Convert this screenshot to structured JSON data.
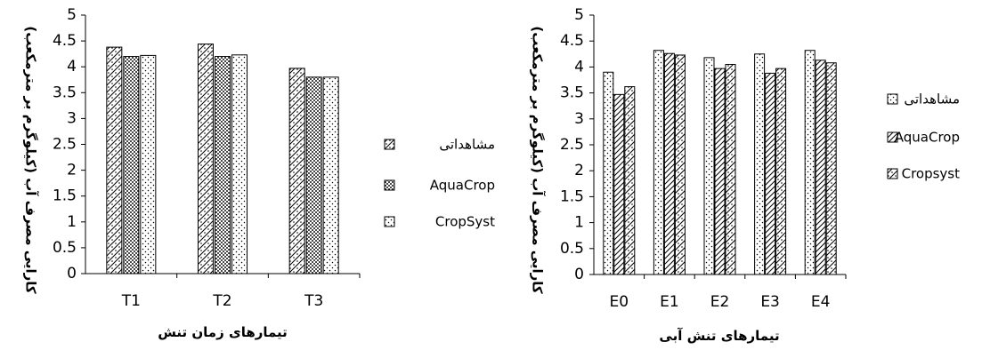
{
  "chart_data": [
    {
      "type": "bar",
      "title": "",
      "xlabel": "تیمارهای زمان تنش",
      "ylabel": "کارایی مصرف آب (کیلوگرم بر مترمکعب)",
      "categories": [
        "T1",
        "T2",
        "T3"
      ],
      "ylim": [
        0,
        5
      ],
      "yticks": [
        "0",
        "0.5",
        "1",
        "1.5",
        "2",
        "2.5",
        "3",
        "3.5",
        "4",
        "4.5",
        "5"
      ],
      "grid": false,
      "legend_position": "right",
      "legend": [
        "مشاهداتی",
        "AquaCrop",
        "CropSyst"
      ],
      "series": [
        {
          "name": "مشاهداتی",
          "pattern": "diagonal-dotted",
          "values": [
            4.38,
            4.44,
            3.97
          ]
        },
        {
          "name": "AquaCrop",
          "pattern": "dense-dots",
          "values": [
            4.2,
            4.2,
            3.8
          ]
        },
        {
          "name": "CropSyst",
          "pattern": "sparse-dots",
          "values": [
            4.22,
            4.23,
            3.8
          ]
        }
      ]
    },
    {
      "type": "bar",
      "title": "",
      "xlabel": "تیمارهای تنش آبی",
      "ylabel": "کارایی مصرف آب (کیلوگرم بر مترمکعب)",
      "categories": [
        "E0",
        "E1",
        "E2",
        "E3",
        "E4"
      ],
      "ylim": [
        0,
        5
      ],
      "yticks": [
        "0",
        "0.5",
        "1",
        "1.5",
        "2",
        "2.5",
        "3",
        "3.5",
        "4",
        "4.5",
        "5"
      ],
      "grid": false,
      "legend_position": "right",
      "legend": [
        "مشاهداتی",
        "AquaCrop",
        "Cropsyst"
      ],
      "series": [
        {
          "name": "مشاهداتی",
          "pattern": "sparse-dots",
          "values": [
            3.9,
            4.32,
            4.18,
            4.25,
            4.32
          ]
        },
        {
          "name": "AquaCrop",
          "pattern": "diagonal-hatch",
          "values": [
            3.47,
            4.26,
            3.97,
            3.88,
            4.13
          ]
        },
        {
          "name": "Cropsyst",
          "pattern": "diagonal-dotted",
          "values": [
            3.62,
            4.23,
            4.05,
            3.97,
            4.08
          ]
        }
      ]
    }
  ]
}
